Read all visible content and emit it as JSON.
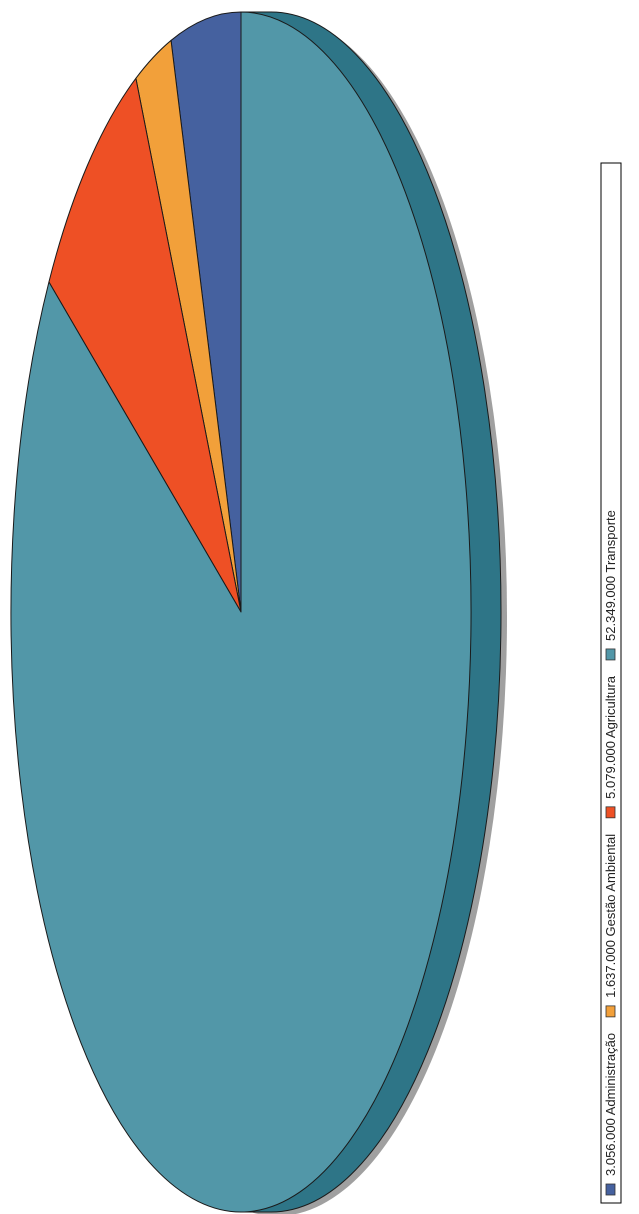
{
  "chart_data": {
    "type": "pie",
    "three_d": true,
    "orientation": "rotated-90-ccw",
    "legend_position": "right",
    "slices": [
      {
        "label": "Administração",
        "value": 3056000,
        "value_text": "3.056.000",
        "color": "#45619f"
      },
      {
        "label": "Gestão Ambiental",
        "value": 1637000,
        "value_text": "1.637.000",
        "color": "#f2a03a"
      },
      {
        "label": "Agricultura",
        "value": 5079000,
        "value_text": "5.079.000",
        "color": "#ee5025"
      },
      {
        "label": "Transporte",
        "value": 52349000,
        "value_text": "52.349.000",
        "color": "#5297a8"
      }
    ],
    "depth_color": "#2e7587",
    "shadow_color": "#a0a0a0",
    "outline_color": "#1a1a1a"
  }
}
